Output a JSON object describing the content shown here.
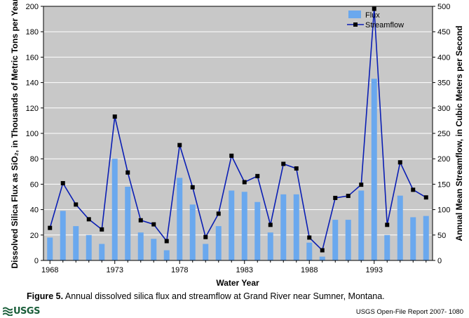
{
  "chart_data": {
    "type": "bar+line",
    "title": "",
    "xlabel": "Water Year",
    "ylabel_left": "Dissolved Silica Flux as SiO₂, in Thousands of Metric Tons per Year",
    "ylabel_right": "Annual Mean Streamflow, in Cubic Meters per Second",
    "ylim_left": [
      0,
      200
    ],
    "ylim_right": [
      0,
      500
    ],
    "xlim": [
      1967.5,
      1997.5
    ],
    "x_ticks": [
      1968,
      1973,
      1978,
      1983,
      1988,
      1993
    ],
    "y_ticks_left": [
      0,
      20,
      40,
      60,
      80,
      100,
      120,
      140,
      160,
      180,
      200
    ],
    "y_ticks_right": [
      0,
      50,
      100,
      150,
      200,
      250,
      300,
      350,
      400,
      450,
      500
    ],
    "years": [
      1968,
      1969,
      1970,
      1971,
      1972,
      1973,
      1974,
      1975,
      1976,
      1977,
      1978,
      1979,
      1980,
      1981,
      1982,
      1983,
      1984,
      1985,
      1986,
      1987,
      1988,
      1989,
      1990,
      1991,
      1992,
      1993,
      1994,
      1995,
      1996,
      1997
    ],
    "series": [
      {
        "name": "Flux",
        "kind": "bar",
        "axis": "left",
        "color": "#6aa8ee",
        "values": [
          18,
          39,
          27,
          20,
          13,
          80,
          58,
          22,
          17,
          8,
          65,
          44,
          13,
          27,
          55,
          54,
          46,
          22,
          52,
          52,
          14,
          3,
          32,
          32,
          55,
          143,
          20,
          51,
          34,
          35
        ]
      },
      {
        "name": "Streamflow",
        "kind": "line",
        "axis": "right",
        "color": "#0a1eb4",
        "marker_color": "#000000",
        "values": [
          64,
          152,
          110,
          81,
          61,
          283,
          173,
          79,
          71,
          38,
          227,
          144,
          46,
          92,
          206,
          154,
          166,
          70,
          190,
          181,
          45,
          20,
          123,
          127,
          149,
          495,
          70,
          193,
          139,
          124
        ]
      }
    ],
    "legend_position": "top-right",
    "plot_background": "#c8c8c8",
    "grid": true
  },
  "caption": {
    "label": "Figure 5.",
    "text": " Annual dissolved silica flux and streamflow at Grand River near Sumner, Montana."
  },
  "footer": {
    "logo_text": "USGS",
    "report": "USGS Open-File Report 2007- 1080"
  }
}
